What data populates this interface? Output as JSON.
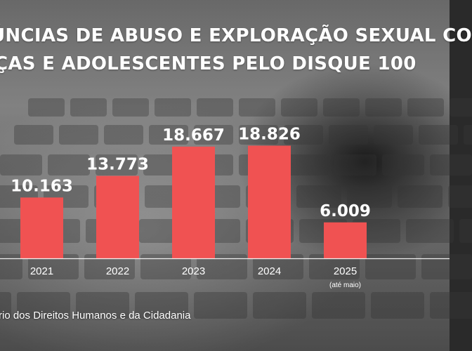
{
  "title_line_1": "ÚNCIAS DE ABUSO E EXPLORAÇÃO SEXUAL CO",
  "title_line_2": "ÇAS E ADOLESCENTES PELO DISQUE 100",
  "source": "rio dos Direitos Humanos e da Cidadania",
  "colors": {
    "bar": "#f05252",
    "axis": "#ffffff",
    "text": "#ffffff"
  },
  "chart_data": {
    "type": "bar",
    "categories": [
      "2021",
      "2022",
      "2023",
      "2024",
      "2025"
    ],
    "category_notes": [
      "",
      "",
      "",
      "",
      "(até maio)"
    ],
    "values": [
      10163,
      13773,
      18667,
      18826,
      6009
    ],
    "value_labels": [
      "10.163",
      "13.773",
      "18.667",
      "18.826",
      "6.009"
    ],
    "ylim": [
      0,
      19000
    ],
    "grid": false,
    "legend": "none"
  }
}
